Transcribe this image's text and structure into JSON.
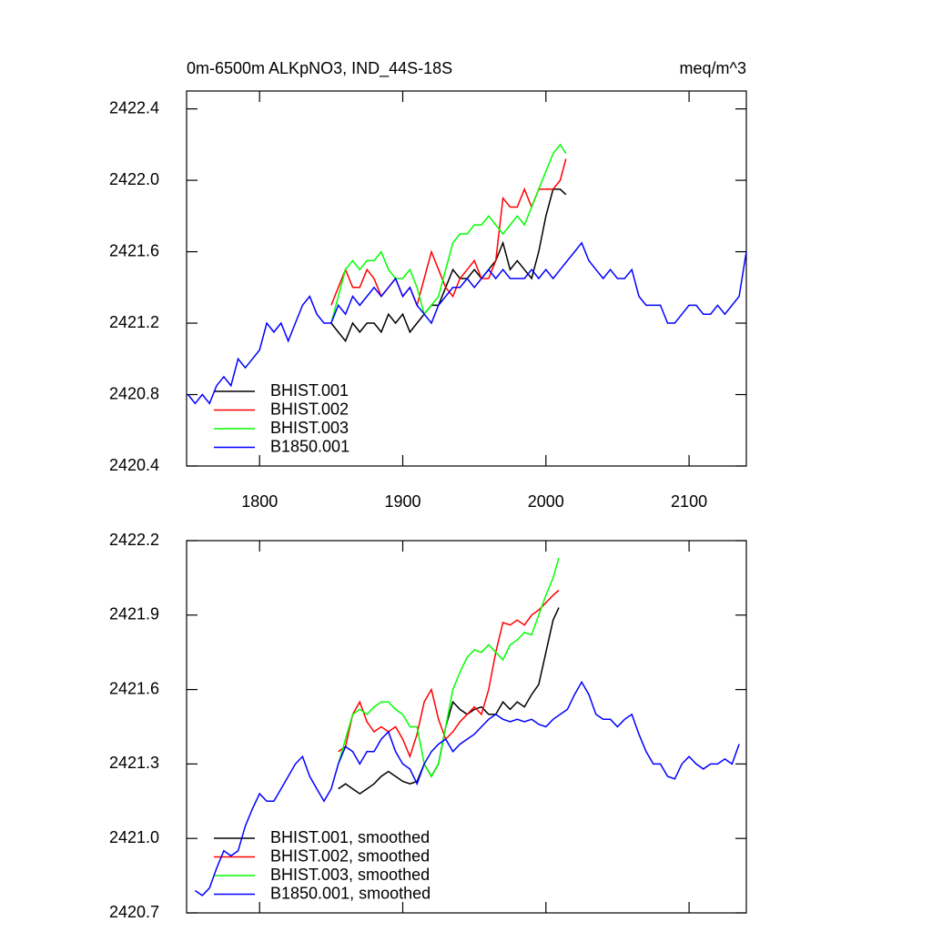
{
  "chart_data": [
    {
      "type": "line",
      "title": "0m-6500m ALKpNO3, IND_44S-18S",
      "units": "meq/m^3",
      "xlim": [
        1749,
        2140
      ],
      "xticks": [
        1800,
        1900,
        2000,
        2100
      ],
      "show_xtick_labels": true,
      "ylim": [
        2420.4,
        2422.5
      ],
      "yticks": [
        2420.4,
        2420.8,
        2421.2,
        2421.6,
        {
          "value": 2422,
          "label": "2422.0"
        },
        2422.4
      ],
      "legend": "lower left",
      "series": [
        {
          "name": "BHIST.001",
          "color": "#000000",
          "x": [
            1850,
            1855,
            1860,
            1865,
            1870,
            1875,
            1880,
            1885,
            1890,
            1895,
            1900,
            1905,
            1910,
            1915,
            1920,
            1925,
            1930,
            1935,
            1940,
            1945,
            1950,
            1955,
            1960,
            1965,
            1970,
            1975,
            1980,
            1985,
            1990,
            1995,
            2000,
            2005,
            2010,
            2014
          ],
          "values": [
            2421.2,
            2421.15,
            2421.1,
            2421.2,
            2421.15,
            2421.2,
            2421.2,
            2421.15,
            2421.25,
            2421.2,
            2421.25,
            2421.15,
            2421.2,
            2421.25,
            2421.3,
            2421.3,
            2421.4,
            2421.5,
            2421.45,
            2421.45,
            2421.5,
            2421.45,
            2421.5,
            2421.55,
            2421.65,
            2421.5,
            2421.55,
            2421.5,
            2421.45,
            2421.6,
            2421.8,
            2421.95,
            2421.95,
            2421.92
          ]
        },
        {
          "name": "BHIST.002",
          "color": "#ff0000",
          "x": [
            1850,
            1855,
            1860,
            1865,
            1870,
            1875,
            1880,
            1885,
            1890,
            1895,
            1900,
            1905,
            1910,
            1915,
            1920,
            1925,
            1930,
            1935,
            1940,
            1945,
            1950,
            1955,
            1960,
            1965,
            1970,
            1975,
            1980,
            1985,
            1990,
            1995,
            2000,
            2005,
            2010,
            2014
          ],
          "values": [
            2421.3,
            2421.4,
            2421.5,
            2421.4,
            2421.4,
            2421.5,
            2421.45,
            2421.35,
            2421.4,
            2421.45,
            2421.35,
            2421.4,
            2421.3,
            2421.45,
            2421.6,
            2421.5,
            2421.4,
            2421.35,
            2421.45,
            2421.5,
            2421.55,
            2421.45,
            2421.45,
            2421.55,
            2421.9,
            2421.85,
            2421.85,
            2421.95,
            2421.85,
            2421.95,
            2421.95,
            2421.95,
            2422.0,
            2422.12
          ]
        },
        {
          "name": "BHIST.003",
          "color": "#00ff00",
          "x": [
            1850,
            1855,
            1860,
            1865,
            1870,
            1875,
            1880,
            1885,
            1890,
            1895,
            1900,
            1905,
            1910,
            1915,
            1920,
            1925,
            1930,
            1935,
            1940,
            1945,
            1950,
            1955,
            1960,
            1965,
            1970,
            1975,
            1980,
            1985,
            1990,
            1995,
            2000,
            2005,
            2010,
            2014
          ],
          "values": [
            2421.2,
            2421.35,
            2421.5,
            2421.55,
            2421.5,
            2421.55,
            2421.55,
            2421.6,
            2421.5,
            2421.45,
            2421.45,
            2421.5,
            2421.4,
            2421.25,
            2421.3,
            2421.35,
            2421.5,
            2421.65,
            2421.7,
            2421.7,
            2421.75,
            2421.75,
            2421.8,
            2421.75,
            2421.7,
            2421.75,
            2421.8,
            2421.75,
            2421.85,
            2421.95,
            2422.05,
            2422.15,
            2422.2,
            2422.15
          ]
        },
        {
          "name": "B1850.001",
          "color": "#0000ff",
          "x": [
            1750,
            1755,
            1760,
            1765,
            1770,
            1775,
            1780,
            1785,
            1790,
            1795,
            1800,
            1805,
            1810,
            1815,
            1820,
            1825,
            1830,
            1835,
            1840,
            1845,
            1850,
            1855,
            1860,
            1865,
            1870,
            1875,
            1880,
            1885,
            1890,
            1895,
            1900,
            1905,
            1910,
            1915,
            1920,
            1925,
            1930,
            1935,
            1940,
            1945,
            1950,
            1955,
            1960,
            1965,
            1970,
            1975,
            1980,
            1985,
            1990,
            1995,
            2000,
            2005,
            2010,
            2015,
            2020,
            2025,
            2030,
            2035,
            2040,
            2045,
            2050,
            2055,
            2060,
            2065,
            2070,
            2075,
            2080,
            2085,
            2090,
            2095,
            2100,
            2105,
            2110,
            2115,
            2120,
            2125,
            2130,
            2135,
            2140
          ],
          "values": [
            2420.8,
            2420.75,
            2420.8,
            2420.75,
            2420.85,
            2420.9,
            2420.85,
            2421.0,
            2420.95,
            2421.0,
            2421.05,
            2421.2,
            2421.15,
            2421.2,
            2421.1,
            2421.2,
            2421.3,
            2421.35,
            2421.25,
            2421.2,
            2421.2,
            2421.3,
            2421.25,
            2421.35,
            2421.3,
            2421.35,
            2421.4,
            2421.35,
            2421.4,
            2421.45,
            2421.35,
            2421.4,
            2421.3,
            2421.25,
            2421.2,
            2421.3,
            2421.35,
            2421.4,
            2421.4,
            2421.45,
            2421.4,
            2421.45,
            2421.5,
            2421.45,
            2421.5,
            2421.45,
            2421.45,
            2421.45,
            2421.5,
            2421.45,
            2421.5,
            2421.45,
            2421.5,
            2421.55,
            2421.6,
            2421.65,
            2421.55,
            2421.5,
            2421.45,
            2421.5,
            2421.45,
            2421.45,
            2421.5,
            2421.35,
            2421.3,
            2421.3,
            2421.3,
            2421.2,
            2421.2,
            2421.25,
            2421.3,
            2421.3,
            2421.25,
            2421.25,
            2421.3,
            2421.25,
            2421.3,
            2421.35,
            2421.6
          ]
        }
      ]
    },
    {
      "type": "line",
      "xlim": [
        1749,
        2140
      ],
      "xticks": [
        1800,
        1900,
        2000,
        2100
      ],
      "show_xtick_labels": false,
      "ylim": [
        2420.7,
        2422.2
      ],
      "yticks": [
        2420.7,
        {
          "value": 2421,
          "label": "2421.0"
        },
        2421.3,
        2421.6,
        2421.9,
        2422.2
      ],
      "legend": "lower left",
      "series": [
        {
          "name": "BHIST.001, smoothed",
          "color": "#000000",
          "x": [
            1855,
            1860,
            1865,
            1870,
            1875,
            1880,
            1885,
            1890,
            1895,
            1900,
            1905,
            1910,
            1915,
            1920,
            1925,
            1930,
            1935,
            1940,
            1945,
            1950,
            1955,
            1960,
            1965,
            1970,
            1975,
            1980,
            1985,
            1990,
            1995,
            2000,
            2005,
            2009
          ],
          "values": [
            2421.2,
            2421.22,
            2421.2,
            2421.18,
            2421.2,
            2421.22,
            2421.25,
            2421.27,
            2421.25,
            2421.23,
            2421.22,
            2421.23,
            2421.3,
            2421.25,
            2421.3,
            2421.45,
            2421.55,
            2421.52,
            2421.5,
            2421.52,
            2421.53,
            2421.5,
            2421.5,
            2421.55,
            2421.52,
            2421.55,
            2421.53,
            2421.58,
            2421.62,
            2421.75,
            2421.88,
            2421.93
          ]
        },
        {
          "name": "BHIST.002, smoothed",
          "color": "#ff0000",
          "x": [
            1855,
            1860,
            1865,
            1870,
            1875,
            1880,
            1885,
            1890,
            1895,
            1900,
            1905,
            1910,
            1915,
            1920,
            1925,
            1930,
            1935,
            1940,
            1945,
            1950,
            1955,
            1960,
            1965,
            1970,
            1975,
            1980,
            1985,
            1990,
            1995,
            2000,
            2005,
            2009
          ],
          "values": [
            2421.35,
            2421.37,
            2421.5,
            2421.55,
            2421.47,
            2421.43,
            2421.45,
            2421.43,
            2421.45,
            2421.4,
            2421.33,
            2421.42,
            2421.55,
            2421.6,
            2421.48,
            2421.4,
            2421.43,
            2421.47,
            2421.5,
            2421.53,
            2421.5,
            2421.6,
            2421.75,
            2421.87,
            2421.86,
            2421.88,
            2421.86,
            2421.9,
            2421.92,
            2421.95,
            2421.98,
            2422.0
          ]
        },
        {
          "name": "BHIST.003, smoothed",
          "color": "#00ff00",
          "x": [
            1855,
            1860,
            1865,
            1870,
            1875,
            1880,
            1885,
            1890,
            1895,
            1900,
            1905,
            1910,
            1915,
            1920,
            1925,
            1930,
            1935,
            1940,
            1945,
            1950,
            1955,
            1960,
            1965,
            1970,
            1975,
            1980,
            1985,
            1990,
            1995,
            2000,
            2005,
            2009
          ],
          "values": [
            2421.3,
            2421.4,
            2421.5,
            2421.52,
            2421.5,
            2421.53,
            2421.55,
            2421.55,
            2421.52,
            2421.5,
            2421.45,
            2421.45,
            2421.3,
            2421.25,
            2421.3,
            2421.45,
            2421.6,
            2421.67,
            2421.73,
            2421.76,
            2421.75,
            2421.78,
            2421.75,
            2421.72,
            2421.78,
            2421.8,
            2421.83,
            2421.82,
            2421.9,
            2421.98,
            2422.05,
            2422.13
          ]
        },
        {
          "name": "B1850.001, smoothed",
          "color": "#0000ff",
          "x": [
            1755,
            1760,
            1765,
            1770,
            1775,
            1780,
            1785,
            1790,
            1795,
            1800,
            1805,
            1810,
            1815,
            1820,
            1825,
            1830,
            1835,
            1840,
            1845,
            1850,
            1855,
            1860,
            1865,
            1870,
            1875,
            1880,
            1885,
            1890,
            1895,
            1900,
            1905,
            1910,
            1915,
            1920,
            1925,
            1930,
            1935,
            1940,
            1945,
            1950,
            1955,
            1960,
            1965,
            1970,
            1975,
            1980,
            1985,
            1990,
            1995,
            2000,
            2005,
            2010,
            2015,
            2020,
            2025,
            2030,
            2035,
            2040,
            2045,
            2050,
            2055,
            2060,
            2065,
            2070,
            2075,
            2080,
            2085,
            2090,
            2095,
            2100,
            2105,
            2110,
            2115,
            2120,
            2125,
            2130,
            2135
          ],
          "values": [
            2420.79,
            2420.77,
            2420.8,
            2420.88,
            2420.95,
            2420.93,
            2420.95,
            2421.05,
            2421.12,
            2421.18,
            2421.15,
            2421.15,
            2421.2,
            2421.25,
            2421.3,
            2421.33,
            2421.25,
            2421.2,
            2421.15,
            2421.2,
            2421.3,
            2421.37,
            2421.35,
            2421.3,
            2421.35,
            2421.35,
            2421.4,
            2421.43,
            2421.35,
            2421.3,
            2421.28,
            2421.22,
            2421.3,
            2421.35,
            2421.38,
            2421.4,
            2421.35,
            2421.38,
            2421.4,
            2421.42,
            2421.45,
            2421.48,
            2421.5,
            2421.48,
            2421.47,
            2421.48,
            2421.47,
            2421.48,
            2421.46,
            2421.45,
            2421.48,
            2421.5,
            2421.52,
            2421.58,
            2421.63,
            2421.58,
            2421.5,
            2421.48,
            2421.48,
            2421.45,
            2421.48,
            2421.5,
            2421.42,
            2421.35,
            2421.3,
            2421.3,
            2421.25,
            2421.24,
            2421.3,
            2421.33,
            2421.3,
            2421.28,
            2421.3,
            2421.3,
            2421.32,
            2421.3,
            2421.38
          ]
        }
      ]
    }
  ]
}
